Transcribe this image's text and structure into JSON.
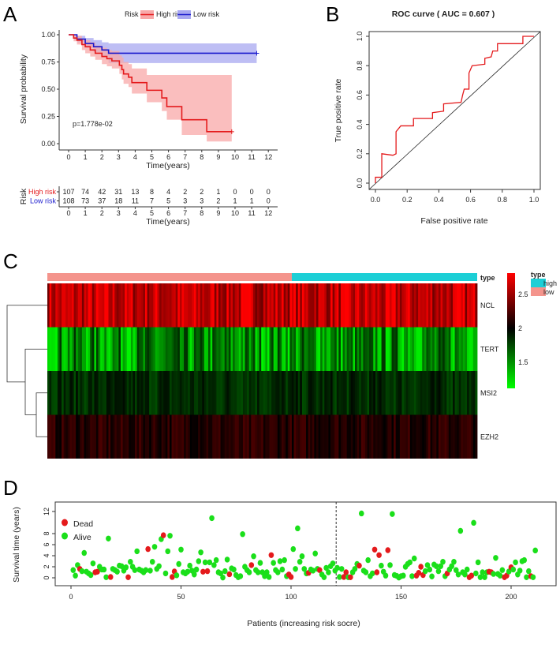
{
  "panels": {
    "a": "A",
    "b": "B",
    "c": "C",
    "d": "D"
  },
  "chart_data": [
    {
      "type": "line",
      "subtype": "kaplan-meier",
      "xlabel": "Time(years)",
      "ylabel": "Survival probability",
      "xlim": [
        0,
        12
      ],
      "ylim": [
        0,
        1
      ],
      "xticks": [
        "0",
        "1",
        "2",
        "3",
        "4",
        "5",
        "6",
        "7",
        "8",
        "9",
        "10",
        "11",
        "12"
      ],
      "yticks": [
        "0.00",
        "0.25",
        "0.50",
        "0.75",
        "1.00"
      ],
      "annotation": "p=1.778e-02",
      "legend": {
        "title": "Risk",
        "position": "top"
      },
      "colors": {
        "High risk": "#e41a1c",
        "Low risk": "#1a1acd"
      },
      "series": [
        {
          "name": "High risk",
          "steps": [
            [
              0,
              1
            ],
            [
              0.3,
              0.97
            ],
            [
              0.5,
              0.95
            ],
            [
              0.8,
              0.91
            ],
            [
              1,
              0.89
            ],
            [
              1.3,
              0.86
            ],
            [
              1.6,
              0.83
            ],
            [
              2,
              0.8
            ],
            [
              2.3,
              0.78
            ],
            [
              2.6,
              0.76
            ],
            [
              3.05,
              0.72
            ],
            [
              3.2,
              0.68
            ],
            [
              3.3,
              0.64
            ],
            [
              3.6,
              0.61
            ],
            [
              3.8,
              0.56
            ],
            [
              4.7,
              0.49
            ],
            [
              5.6,
              0.42
            ],
            [
              5.9,
              0.34
            ],
            [
              6.8,
              0.22
            ],
            [
              8.3,
              0.11
            ],
            [
              9.8,
              0.11
            ]
          ],
          "ci_lower": [
            1,
            0.94,
            0.91,
            0.86,
            0.83,
            0.8,
            0.77,
            0.73,
            0.71,
            0.69,
            0.64,
            0.59,
            0.55,
            0.52,
            0.46,
            0.38,
            0.3,
            0.22,
            0.08,
            0.02,
            0.02
          ],
          "ci_upper": [
            1,
            1,
            0.99,
            0.96,
            0.95,
            0.93,
            0.9,
            0.88,
            0.86,
            0.85,
            0.81,
            0.79,
            0.75,
            0.73,
            0.69,
            0.63,
            0.63,
            0.63,
            0.63,
            0.63,
            0.63
          ]
        },
        {
          "name": "Low risk",
          "steps": [
            [
              0,
              1
            ],
            [
              0.5,
              0.96
            ],
            [
              1,
              0.92
            ],
            [
              1.5,
              0.89
            ],
            [
              2,
              0.86
            ],
            [
              2.4,
              0.83
            ],
            [
              11.3,
              0.83
            ]
          ],
          "ci_lower": [
            1,
            0.93,
            0.88,
            0.84,
            0.8,
            0.74,
            0.74
          ],
          "ci_upper": [
            1,
            0.99,
            0.97,
            0.95,
            0.93,
            0.92,
            0.92
          ]
        }
      ],
      "risk_table": {
        "title": "Risk",
        "xlabel": "Time(years)",
        "rows": [
          {
            "name": "High risk",
            "values": [
              "107",
              "74",
              "42",
              "31",
              "13",
              "8",
              "4",
              "2",
              "2",
              "1",
              "0",
              "0",
              "0"
            ]
          },
          {
            "name": "Low risk",
            "values": [
              "108",
              "73",
              "37",
              "18",
              "11",
              "7",
              "5",
              "3",
              "3",
              "2",
              "1",
              "1",
              "0"
            ]
          }
        ]
      }
    },
    {
      "type": "line",
      "subtype": "roc",
      "title": "ROC curve ( AUC =  0.607 )",
      "xlabel": "False positive rate",
      "ylabel": "True positive rate",
      "xlim": [
        0,
        1
      ],
      "ylim": [
        0,
        1
      ],
      "xticks": [
        "0.0",
        "0.2",
        "0.4",
        "0.6",
        "0.8",
        "1.0"
      ],
      "yticks": [
        "0.0",
        "0.2",
        "0.4",
        "0.6",
        "0.8",
        "1.0"
      ],
      "color": "#e41a1c",
      "points": [
        [
          0,
          0
        ],
        [
          0,
          0.04
        ],
        [
          0.04,
          0.04
        ],
        [
          0.04,
          0.2
        ],
        [
          0.11,
          0.19
        ],
        [
          0.13,
          0.2
        ],
        [
          0.13,
          0.35
        ],
        [
          0.16,
          0.39
        ],
        [
          0.24,
          0.39
        ],
        [
          0.24,
          0.44
        ],
        [
          0.36,
          0.44
        ],
        [
          0.36,
          0.48
        ],
        [
          0.43,
          0.49
        ],
        [
          0.43,
          0.54
        ],
        [
          0.54,
          0.55
        ],
        [
          0.55,
          0.6
        ],
        [
          0.56,
          0.64
        ],
        [
          0.59,
          0.64
        ],
        [
          0.59,
          0.75
        ],
        [
          0.61,
          0.8
        ],
        [
          0.69,
          0.81
        ],
        [
          0.69,
          0.85
        ],
        [
          0.73,
          0.86
        ],
        [
          0.74,
          0.9
        ],
        [
          0.77,
          0.9
        ],
        [
          0.77,
          0.95
        ],
        [
          0.93,
          0.95
        ],
        [
          0.93,
          1
        ],
        [
          1,
          1
        ]
      ]
    },
    {
      "type": "heatmap",
      "rows": [
        "NCL",
        "TERT",
        "MSI2",
        "EZH2"
      ],
      "row_levels": [
        2.6,
        1.5,
        1.85,
        2.12
      ],
      "annotation_label": "type",
      "groups": [
        {
          "name": "low",
          "count": 120,
          "color": "#f4948c"
        },
        {
          "name": "high",
          "count": 91,
          "color": "#1ccfd6"
        }
      ],
      "legend_title": "type",
      "color_scale": {
        "low": "#00ff00",
        "mid": "#000000",
        "high": "#ff0000",
        "range": [
          1.12,
          2.81
        ],
        "ticks": [
          "1.5",
          "2",
          "2.5"
        ]
      }
    },
    {
      "type": "scatter",
      "xlabel": "Patients (increasing risk socre)",
      "ylabel": "Survival time (years)",
      "xlim": [
        0,
        211
      ],
      "ylim": [
        0,
        12
      ],
      "xticks": [
        "0",
        "50",
        "100",
        "150",
        "200"
      ],
      "yticks": [
        "0",
        "2",
        "4",
        "6",
        "8",
        "12"
      ],
      "cutoff": 120.5,
      "legend": [
        {
          "name": "Dead",
          "color": "#e41a1c"
        },
        {
          "name": "Alive",
          "color": "#1adf1a"
        }
      ],
      "survival_time": [
        1.4,
        0.4,
        2.3,
        1.6,
        1.2,
        4.5,
        1.1,
        0.8,
        0.5,
        2.6,
        1.0,
        1.1,
        2.0,
        1.5,
        1.5,
        0.1,
        7.1,
        0.15,
        1.6,
        1.4,
        1.1,
        2.2,
        2.1,
        1.3,
        1.9,
        0.1,
        2.9,
        2.0,
        1.4,
        4.8,
        1.5,
        1.3,
        1.0,
        1.4,
        5.2,
        1.3,
        2.9,
        5.6,
        1.6,
        2.1,
        7.0,
        7.7,
        0.8,
        4.8,
        7.6,
        0.15,
        1.15,
        0.45,
        2.5,
        5.1,
        1.0,
        0.8,
        1.1,
        2.2,
        1.3,
        0.6,
        1.5,
        3.0,
        4.6,
        1.1,
        2.8,
        1.2,
        2.8,
        10.8,
        2.3,
        3.2,
        1.0,
        0.8,
        0.05,
        1.2,
        3.3,
        0.65,
        1.7,
        1.5,
        0.5,
        0.1,
        0.3,
        7.9,
        2.0,
        1.4,
        1.0,
        2.3,
        3.9,
        1.4,
        1.0,
        2.7,
        1.0,
        0.3,
        1.0,
        0.15,
        4.1,
        2.7,
        1.4,
        1.0,
        3.0,
        1.5,
        3.2,
        0.3,
        0.6,
        0.15,
        5.2,
        1.6,
        8.95,
        2.9,
        3.9,
        1.6,
        0.8,
        0.9,
        1.5,
        1.3,
        4.4,
        1.6,
        1.4,
        0.6,
        0.1,
        1.8,
        1.0,
        2.1,
        2.6,
        1.3,
        1.8,
        0.15,
        1.6,
        0.15,
        1.0,
        0.1,
        0.1,
        1.0,
        1.6,
        2.5,
        2.2,
        11.65,
        1.3,
        1.0,
        3.2,
        0.3,
        0.8,
        5.1,
        1.0,
        4.1,
        2.2,
        1.1,
        0.4,
        5.0,
        2.3,
        11.55,
        0.5,
        0.35,
        0.05,
        0.3,
        0.4,
        2.0,
        2.5,
        2.8,
        0.3,
        3.5,
        0.4,
        0.9,
        2.0,
        0.5,
        1.2,
        2.3,
        1.5,
        0.25,
        2.4,
        2.1,
        1.2,
        2.1,
        2.9,
        0.3,
        0.8,
        1.5,
        2.1,
        2.9,
        1.4,
        0.6,
        8.5,
        1.0,
        0.6,
        1.5,
        0.1,
        0.4,
        9.95,
        0.8,
        2.8,
        0.1,
        1.0,
        0.1,
        1.0,
        1.1,
        1.0,
        0.7,
        3.6,
        0.7,
        0.4,
        1.4,
        0.1,
        0.4,
        1.15,
        1.9,
        1.5,
        2.8,
        0.6,
        1.3,
        3.0,
        3.2,
        0.1,
        1.2,
        0.3,
        0.1,
        4.95
      ],
      "dead_patients": [
        4,
        11,
        12,
        18,
        26,
        35,
        42,
        46,
        47,
        60,
        62,
        72,
        82,
        91,
        99,
        100,
        108,
        113,
        124,
        125,
        127,
        131,
        138,
        139,
        140,
        144,
        157,
        158,
        159,
        160,
        171,
        181,
        182,
        190,
        191,
        197,
        198,
        200,
        209
      ]
    }
  ]
}
